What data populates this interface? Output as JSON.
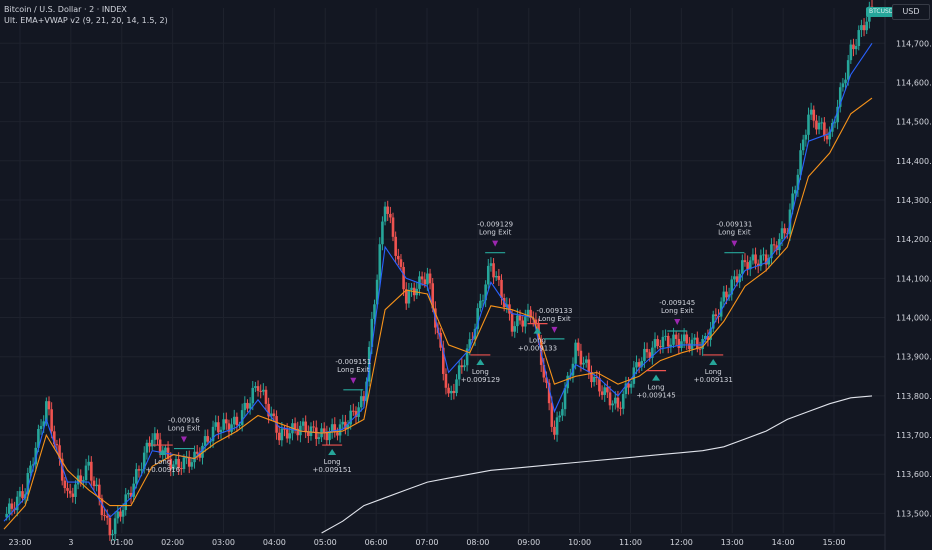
{
  "header": {
    "symbol_line": "Bitcoin / U.S. Dollar · 2 · INDEX",
    "indicator_line": "Ult. EMA+VWAP v2 (9, 21, 20, 14, 1.5, 2)"
  },
  "currency_label": "USD",
  "last_price_tag": "BTCUSD",
  "colors": {
    "background": "#131722",
    "up": "#26a69a",
    "down": "#ef5350",
    "ema_fast": "#2962ff",
    "ema_slow": "#f7931a",
    "vwap": "#e0e3eb",
    "signal": "#9c27b0",
    "text": "#d1d4dc"
  },
  "price_axis": {
    "ticks": [
      "114,700.00",
      "114,600.00",
      "114,500.00",
      "114,400.00",
      "114,300.00",
      "114,200.00",
      "114,100.00",
      "114,000.00",
      "113,900.00",
      "113,800.00",
      "113,700.00",
      "113,600.00",
      "113,500.00"
    ],
    "values": [
      114700,
      114600,
      114500,
      114400,
      114300,
      114200,
      114100,
      114000,
      113900,
      113800,
      113700,
      113600,
      113500
    ]
  },
  "time_axis": {
    "labels": [
      "23:00",
      "3",
      "01:00",
      "02:00",
      "03:00",
      "04:00",
      "05:00",
      "06:00",
      "07:00",
      "08:00",
      "09:00",
      "10:00",
      "11:00",
      "12:00",
      "13:00",
      "14:00",
      "15:00"
    ]
  },
  "chart_data": {
    "type": "line",
    "title": "Bitcoin / U.S. Dollar · 2 · INDEX",
    "ylim": [
      113450,
      114790
    ],
    "x": [
      "22:40",
      "23:00",
      "23:30",
      "00:00",
      "00:30",
      "01:00",
      "01:30",
      "02:00",
      "02:30",
      "03:00",
      "03:30",
      "04:00",
      "04:30",
      "05:00",
      "05:30",
      "06:00",
      "06:30",
      "07:00",
      "07:10",
      "07:30",
      "08:00",
      "08:20",
      "08:40",
      "09:00",
      "09:20",
      "09:40",
      "10:00",
      "10:20",
      "10:40",
      "11:00",
      "11:20",
      "11:40",
      "12:00",
      "12:30",
      "13:00",
      "13:30",
      "14:00",
      "14:20",
      "14:40",
      "15:00",
      "15:10",
      "15:30"
    ],
    "series": [
      {
        "name": "BTC",
        "values": [
          113490,
          113560,
          113780,
          113540,
          113620,
          113450,
          113560,
          113700,
          113620,
          113640,
          113720,
          113730,
          113830,
          113700,
          113720,
          113700,
          113720,
          113790,
          114300,
          114050,
          114110,
          113790,
          113930,
          114140,
          113980,
          114010,
          113700,
          113920,
          113830,
          113770,
          113890,
          113940,
          113940,
          113930,
          114050,
          114140,
          114150,
          114230,
          114520,
          114460,
          114680,
          114790
        ]
      },
      {
        "values": [
          113480,
          113540,
          113740,
          113580,
          113580,
          113490,
          113540,
          113660,
          113650,
          113640,
          113700,
          113720,
          113790,
          113720,
          113710,
          113705,
          113715,
          113770,
          114180,
          114100,
          114080,
          113860,
          113920,
          114090,
          114010,
          114000,
          113760,
          113880,
          113850,
          113800,
          113870,
          113920,
          113930,
          113930,
          114030,
          114120,
          114140,
          114210,
          114450,
          114470,
          114620,
          114700
        ]
      },
      {
        "values": [
          113460,
          113520,
          113700,
          113610,
          113560,
          113520,
          113520,
          113620,
          113650,
          113640,
          113680,
          113710,
          113750,
          113730,
          113710,
          113705,
          113710,
          113740,
          114020,
          114070,
          114060,
          113930,
          113910,
          114030,
          114020,
          114000,
          113830,
          113850,
          113860,
          113830,
          113850,
          113890,
          113910,
          113925,
          113990,
          114080,
          114120,
          114180,
          114360,
          114420,
          114520,
          114560
        ]
      },
      {
        "values": [
          null,
          null,
          null,
          null,
          null,
          null,
          null,
          null,
          null,
          null,
          null,
          null,
          null,
          null,
          null,
          113450,
          113480,
          113520,
          113540,
          113560,
          113580,
          113590,
          113600,
          113610,
          113615,
          113620,
          113625,
          113630,
          113635,
          113640,
          113645,
          113650,
          113655,
          113660,
          113670,
          113690,
          113710,
          113740,
          113760,
          113780,
          113795,
          113800
        ]
      }
    ]
  },
  "trades": [
    {
      "entry_top": "Long",
      "entry_bottom": "+0.00916",
      "exit_top": "-0.00916",
      "exit_bottom": "Long Exit"
    },
    {
      "entry_top": "Long",
      "entry_bottom": "+0.009151",
      "exit_top": "-0.009151",
      "exit_bottom": "Long Exit"
    },
    {
      "entry_top": "Long",
      "entry_bottom": "+0.009129",
      "exit_top": "-0.009129",
      "exit_bottom": "Long Exit"
    },
    {
      "entry_top": "Long",
      "entry_bottom": "+0.009133",
      "exit_top": "-0.009133",
      "exit_bottom": "Long Exit"
    },
    {
      "entry_top": "Long",
      "entry_bottom": "+0.009145",
      "exit_top": "-0.009145",
      "exit_bottom": "Long Exit"
    },
    {
      "entry_top": "Long",
      "entry_bottom": "+0.009131",
      "exit_top": "-0.009131",
      "exit_bottom": "Long Exit"
    }
  ]
}
